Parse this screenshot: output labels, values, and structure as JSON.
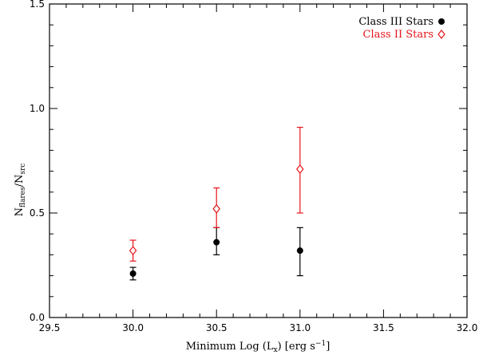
{
  "chart_data": {
    "type": "scatter",
    "xlabel": {
      "main": "Minimum Log (L",
      "sub": "x",
      "mid": ") [erg s",
      "sup": "−1",
      "end": "]"
    },
    "ylabel": {
      "n1": "N",
      "s1": "flares",
      "slash": "/N",
      "s2": "src"
    },
    "xlim": [
      29.5,
      32.0
    ],
    "ylim": [
      0.0,
      1.5
    ],
    "xticks": [
      "29.5",
      "30.0",
      "30.5",
      "31.0",
      "31.5",
      "32.0"
    ],
    "yticks": [
      "0.0",
      "0.5",
      "1.0",
      "1.5"
    ],
    "legend": {
      "placement": "top-right"
    },
    "series": [
      {
        "name": "Class III Stars",
        "marker": "filled-circle",
        "color": "#000000",
        "x": [
          30.0,
          30.5,
          31.0
        ],
        "y": [
          0.21,
          0.36,
          0.32
        ],
        "err_low": [
          0.18,
          0.3,
          0.2
        ],
        "err_high": [
          0.24,
          0.43,
          0.43
        ]
      },
      {
        "name": "Class II Stars",
        "marker": "open-diamond",
        "color": "#e8141a",
        "x": [
          30.0,
          30.5,
          31.0
        ],
        "y": [
          0.32,
          0.52,
          0.71
        ],
        "err_low": [
          0.27,
          0.43,
          0.5
        ],
        "err_high": [
          0.37,
          0.62,
          0.91
        ]
      }
    ]
  }
}
